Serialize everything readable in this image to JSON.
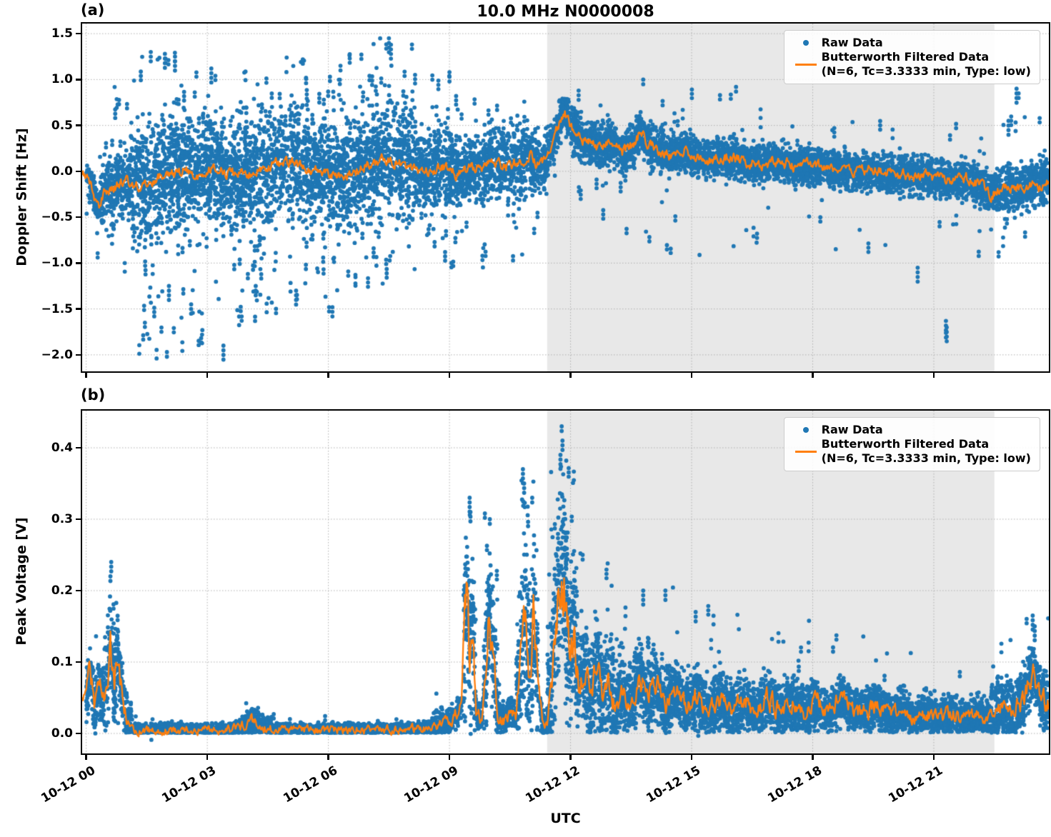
{
  "figure": {
    "title": "10.0 MHz N0000008",
    "xlabel": "UTC"
  },
  "colors": {
    "raw": "#1f77b4",
    "filtered": "#ff7f0e",
    "shade": "#e8e8e8",
    "grid": "#b0b0b0",
    "spine": "#000000",
    "background": "#ffffff"
  },
  "legend": {
    "raw_label": "Raw Data",
    "filtered_label": "Butterworth Filtered Data",
    "filtered_sub": "(N=6, Tc=3.3333 min, Type: low)"
  },
  "x_axis": {
    "label": "UTC",
    "lim": [
      -0.1,
      23.85
    ],
    "ticks_h": [
      0,
      3,
      6,
      9,
      12,
      15,
      18,
      21
    ],
    "tick_labels": [
      "10-12 00",
      "10-12 03",
      "10-12 06",
      "10-12 09",
      "10-12 12",
      "10-12 15",
      "10-12 18",
      "10-12 21"
    ]
  },
  "shade_region": {
    "start_h": 11.42,
    "end_h": 22.5
  },
  "chart_data": [
    {
      "panel_label": "(a)",
      "type": "scatter+line",
      "ylabel": "Doppler Shift [Hz]",
      "ylim": [
        -2.18,
        1.61
      ],
      "yticks": [
        1.5,
        1.0,
        0.5,
        0.0,
        -0.5,
        -1.0,
        -1.5,
        -2.0
      ],
      "ytick_labels": [
        "1.5",
        "1.0",
        "0.5",
        "0.0",
        "−0.5",
        "−1.0",
        "−1.5",
        "−2.0"
      ],
      "series": [
        {
          "name": "Raw Data",
          "kind": "scatter",
          "bands": [
            [
              0.0,
              0.35,
              0.08,
              -0.5,
              0.3,
              360,
              -1.1,
              0.2,
              20
            ],
            [
              0.35,
              1.1,
              0.18,
              -0.8,
              0.55,
              360,
              -1.3,
              0.95,
              28
            ],
            [
              1.1,
              2.3,
              0.3,
              -1.1,
              1.0,
              400,
              -1.98,
              1.3,
              48
            ],
            [
              2.3,
              3.2,
              0.28,
              -1.2,
              0.9,
              400,
              -1.9,
              1.15,
              42
            ],
            [
              3.2,
              4.6,
              0.3,
              -1.25,
              1.0,
              400,
              -1.6,
              1.2,
              42
            ],
            [
              4.6,
              6.4,
              0.28,
              -1.1,
              1.0,
              400,
              -1.5,
              1.25,
              42
            ],
            [
              6.4,
              8.1,
              0.28,
              -1.0,
              1.1,
              400,
              -1.35,
              1.45,
              42
            ],
            [
              8.1,
              9.1,
              0.22,
              -0.8,
              0.9,
              400,
              -1.1,
              1.1,
              32
            ],
            [
              9.1,
              9.8,
              0.18,
              -0.6,
              0.7,
              360,
              -0.9,
              0.9,
              22
            ],
            [
              9.8,
              10.9,
              0.2,
              -0.9,
              0.7,
              360,
              -1.05,
              0.8,
              26
            ],
            [
              10.9,
              11.45,
              0.15,
              -0.5,
              0.6,
              360,
              -0.7,
              0.75,
              16
            ],
            [
              11.45,
              12.05,
              0.1,
              0.0,
              0.8,
              360,
              -0.2,
              0.85,
              10
            ],
            [
              12.05,
              13.0,
              0.12,
              -0.1,
              0.7,
              400,
              -0.5,
              0.9,
              12
            ],
            [
              13.0,
              14.5,
              0.11,
              -0.2,
              0.65,
              400,
              -1.0,
              0.95,
              10
            ],
            [
              14.5,
              16.5,
              0.1,
              -0.3,
              0.55,
              400,
              -0.95,
              0.9,
              10
            ],
            [
              16.5,
              18.5,
              0.1,
              -0.35,
              0.45,
              400,
              -0.85,
              0.7,
              9
            ],
            [
              18.5,
              20.5,
              0.1,
              -0.4,
              0.35,
              400,
              -0.9,
              0.6,
              8
            ],
            [
              20.5,
              22.5,
              0.1,
              -0.45,
              0.3,
              400,
              -0.95,
              0.55,
              8
            ],
            [
              22.5,
              23.85,
              0.12,
              -0.55,
              0.4,
              400,
              -0.95,
              0.9,
              12
            ]
          ],
          "outliers": [
            [
              2.0,
              -1.97
            ],
            [
              2.05,
              -1.25
            ],
            [
              2.6,
              -1.45
            ],
            [
              3.4,
              -1.9
            ],
            [
              1.6,
              1.3
            ],
            [
              1.95,
              1.28
            ],
            [
              2.2,
              1.25
            ],
            [
              3.1,
              1.12
            ],
            [
              4.2,
              -1.25
            ],
            [
              5.2,
              -1.3
            ],
            [
              6.1,
              -1.48
            ],
            [
              6.3,
              1.15
            ],
            [
              7.5,
              1.45
            ],
            [
              7.55,
              1.38
            ],
            [
              9.0,
              1.08
            ],
            [
              12.2,
              0.88
            ],
            [
              13.8,
              1.0
            ],
            [
              16.1,
              0.92
            ],
            [
              20.6,
              -1.05
            ],
            [
              21.3,
              -1.63
            ],
            [
              21.32,
              -1.7
            ],
            [
              21.3,
              -1.76
            ],
            [
              22.85,
              0.55
            ],
            [
              23.05,
              0.9
            ],
            [
              23.1,
              0.85
            ]
          ]
        },
        {
          "name": "Butterworth Filtered Data (N=6, Tc=3.3333 min, Type: low)",
          "kind": "line",
          "wiggle_base": 0.05,
          "wiggle_scale": 0.0,
          "x": [
            0,
            0.15,
            0.3,
            0.45,
            0.7,
            1.0,
            1.3,
            1.7,
            2.0,
            2.4,
            2.8,
            3.2,
            3.6,
            4.0,
            4.4,
            4.8,
            5.1,
            5.4,
            5.8,
            6.2,
            6.6,
            7.0,
            7.4,
            7.7,
            8.0,
            8.4,
            8.8,
            9.2,
            9.6,
            10.0,
            10.4,
            10.7,
            11.0,
            11.2,
            11.4,
            11.55,
            11.7,
            11.85,
            12.0,
            12.2,
            12.4,
            12.7,
            13.0,
            13.3,
            13.6,
            13.75,
            13.95,
            14.2,
            14.5,
            14.8,
            15.1,
            15.5,
            15.9,
            16.3,
            16.7,
            17.1,
            17.5,
            18.0,
            18.5,
            19.0,
            19.5,
            20.0,
            20.5,
            21.0,
            21.4,
            21.8,
            22.1,
            22.4,
            22.7,
            23.0,
            23.3,
            23.6,
            23.85
          ],
          "y": [
            -0.05,
            -0.18,
            -0.42,
            -0.22,
            -0.16,
            -0.12,
            -0.16,
            -0.08,
            -0.05,
            0.0,
            -0.04,
            0.02,
            -0.02,
            -0.06,
            0.04,
            0.08,
            0.12,
            0.04,
            -0.02,
            -0.06,
            0.0,
            0.08,
            0.14,
            0.1,
            0.05,
            0.0,
            0.05,
            -0.03,
            0.03,
            0.1,
            0.04,
            0.1,
            0.16,
            0.06,
            0.1,
            0.28,
            0.5,
            0.66,
            0.5,
            0.38,
            0.32,
            0.27,
            0.3,
            0.2,
            0.32,
            0.44,
            0.28,
            0.22,
            0.17,
            0.23,
            0.15,
            0.12,
            0.16,
            0.1,
            0.08,
            0.11,
            0.06,
            0.07,
            0.03,
            0.0,
            0.02,
            -0.02,
            -0.05,
            -0.06,
            -0.12,
            -0.08,
            -0.12,
            -0.25,
            -0.2,
            -0.22,
            -0.17,
            -0.15,
            -0.07
          ]
        }
      ]
    },
    {
      "panel_label": "(b)",
      "type": "scatter+line",
      "ylabel": "Peak Voltage [V]",
      "ylim": [
        -0.028,
        0.452
      ],
      "yticks": [
        0.4,
        0.3,
        0.2,
        0.1,
        0.0
      ],
      "ytick_labels": [
        "0.4",
        "0.3",
        "0.2",
        "0.1",
        "0.0"
      ],
      "series": [
        {
          "name": "Raw Data",
          "kind": "scatter",
          "bands": [
            [
              0.0,
              0.45,
              0.02,
              0.001,
              0.13,
              420,
              0.001,
              0.15,
              6
            ],
            [
              0.45,
              0.8,
              0.035,
              0.001,
              0.22,
              420,
              0.001,
              0.24,
              16
            ],
            [
              0.8,
              1.15,
              0.02,
              0.001,
              0.12,
              420,
              0.001,
              0.13,
              6
            ],
            [
              1.15,
              3.8,
              0.004,
              0.001,
              0.02,
              420,
              0.001,
              0.028,
              2
            ],
            [
              3.8,
              4.6,
              0.008,
              0.001,
              0.038,
              420,
              0.001,
              0.045,
              3
            ],
            [
              4.6,
              8.6,
              0.004,
              0.001,
              0.02,
              420,
              0.001,
              0.03,
              2
            ],
            [
              8.6,
              9.35,
              0.01,
              0.001,
              0.05,
              420,
              0.001,
              0.06,
              3
            ],
            [
              9.35,
              9.65,
              0.05,
              0.001,
              0.3,
              440,
              0.001,
              0.33,
              30
            ],
            [
              9.65,
              9.85,
              0.008,
              0.001,
              0.05,
              420,
              0.001,
              0.06,
              3
            ],
            [
              9.85,
              10.2,
              0.045,
              0.001,
              0.3,
              440,
              0.001,
              0.31,
              26
            ],
            [
              10.2,
              10.65,
              0.01,
              0.001,
              0.06,
              420,
              0.001,
              0.08,
              4
            ],
            [
              10.65,
              11.2,
              0.05,
              0.001,
              0.33,
              440,
              0.001,
              0.37,
              30
            ],
            [
              11.2,
              11.42,
              0.008,
              0.001,
              0.05,
              420,
              0.001,
              0.06,
              3
            ],
            [
              11.42,
              12.15,
              0.06,
              0.001,
              0.4,
              440,
              0.001,
              0.428,
              40
            ],
            [
              12.15,
              13.1,
              0.035,
              0.001,
              0.22,
              440,
              0.001,
              0.26,
              16
            ],
            [
              13.1,
              14.6,
              0.025,
              0.001,
              0.16,
              440,
              0.001,
              0.21,
              10
            ],
            [
              14.6,
              16.2,
              0.02,
              0.001,
              0.14,
              440,
              0.001,
              0.19,
              8
            ],
            [
              16.2,
              18.2,
              0.018,
              0.001,
              0.12,
              440,
              0.001,
              0.16,
              6
            ],
            [
              18.2,
              20.4,
              0.015,
              0.001,
              0.1,
              440,
              0.001,
              0.14,
              5
            ],
            [
              20.4,
              22.4,
              0.013,
              0.001,
              0.09,
              440,
              0.001,
              0.12,
              4
            ],
            [
              22.4,
              23.85,
              0.02,
              0.001,
              0.12,
              440,
              0.001,
              0.17,
              9
            ]
          ],
          "outliers": [
            [
              0.6,
              0.22
            ],
            [
              0.62,
              0.24
            ],
            [
              9.5,
              0.33
            ],
            [
              9.52,
              0.31
            ],
            [
              10.0,
              0.3
            ],
            [
              10.82,
              0.37
            ],
            [
              10.85,
              0.35
            ],
            [
              11.05,
              0.33
            ],
            [
              11.75,
              0.39
            ],
            [
              11.78,
              0.43
            ],
            [
              11.8,
              0.41
            ],
            [
              12.3,
              0.25
            ],
            [
              13.8,
              0.2
            ],
            [
              14.35,
              0.2
            ],
            [
              15.1,
              0.17
            ],
            [
              23.45,
              0.165
            ],
            [
              23.5,
              0.15
            ]
          ]
        },
        {
          "name": "Butterworth Filtered Data (N=6, Tc=3.3333 min, Type: low)",
          "kind": "line",
          "wiggle_base": 0.004,
          "wiggle_scale": 0.18,
          "x": [
            0,
            0.1,
            0.2,
            0.3,
            0.4,
            0.5,
            0.6,
            0.7,
            0.8,
            0.9,
            1.0,
            1.1,
            1.5,
            2.0,
            2.5,
            3.0,
            3.5,
            3.9,
            4.15,
            4.4,
            4.7,
            5.2,
            5.8,
            6.4,
            7.0,
            7.6,
            8.2,
            8.6,
            8.9,
            9.1,
            9.3,
            9.42,
            9.5,
            9.58,
            9.66,
            9.8,
            9.9,
            10.0,
            10.1,
            10.2,
            10.35,
            10.5,
            10.65,
            10.78,
            10.88,
            10.98,
            11.08,
            11.18,
            11.3,
            11.42,
            11.52,
            11.62,
            11.72,
            11.78,
            11.88,
            11.98,
            12.08,
            12.2,
            12.35,
            12.5,
            12.65,
            12.8,
            12.95,
            13.1,
            13.3,
            13.5,
            13.7,
            13.9,
            14.1,
            14.35,
            14.6,
            14.85,
            15.1,
            15.4,
            15.7,
            16.0,
            16.3,
            16.6,
            16.9,
            17.2,
            17.5,
            17.8,
            18.1,
            18.4,
            18.7,
            19.0,
            19.3,
            19.6,
            19.9,
            20.2,
            20.5,
            20.8,
            21.1,
            21.4,
            21.7,
            22.0,
            22.3,
            22.6,
            22.9,
            23.2,
            23.45,
            23.65,
            23.85
          ],
          "y": [
            0.05,
            0.09,
            0.04,
            0.07,
            0.05,
            0.07,
            0.12,
            0.08,
            0.1,
            0.05,
            0.02,
            0.006,
            0.004,
            0.005,
            0.006,
            0.005,
            0.005,
            0.01,
            0.018,
            0.008,
            0.005,
            0.005,
            0.005,
            0.006,
            0.006,
            0.005,
            0.006,
            0.009,
            0.015,
            0.02,
            0.04,
            0.21,
            0.1,
            0.17,
            0.03,
            0.02,
            0.1,
            0.17,
            0.09,
            0.025,
            0.02,
            0.03,
            0.02,
            0.12,
            0.17,
            0.07,
            0.16,
            0.09,
            0.015,
            0.01,
            0.06,
            0.13,
            0.2,
            0.26,
            0.18,
            0.11,
            0.15,
            0.07,
            0.1,
            0.05,
            0.1,
            0.045,
            0.08,
            0.035,
            0.06,
            0.04,
            0.08,
            0.045,
            0.07,
            0.035,
            0.06,
            0.035,
            0.055,
            0.03,
            0.05,
            0.035,
            0.045,
            0.03,
            0.05,
            0.03,
            0.04,
            0.028,
            0.042,
            0.028,
            0.05,
            0.03,
            0.032,
            0.04,
            0.025,
            0.032,
            0.02,
            0.03,
            0.022,
            0.028,
            0.02,
            0.026,
            0.02,
            0.035,
            0.03,
            0.045,
            0.09,
            0.05,
            0.04
          ]
        }
      ]
    }
  ]
}
